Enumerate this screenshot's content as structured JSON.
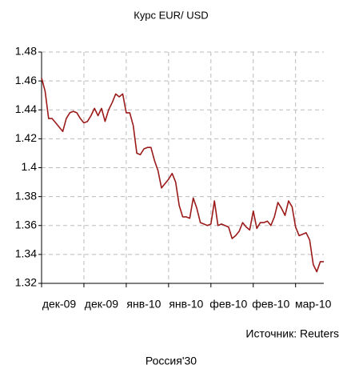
{
  "chart_data": {
    "type": "line",
    "title": "Курс EUR/ USD",
    "source": "Источник: Reuters",
    "footer": "Россия'30",
    "categories": [
      "дек-09",
      null,
      null,
      null,
      null,
      null,
      null,
      null,
      null,
      null,
      null,
      null,
      "дек-09",
      null,
      null,
      null,
      null,
      null,
      null,
      null,
      null,
      null,
      null,
      null,
      "янв-10",
      null,
      null,
      null,
      null,
      null,
      null,
      null,
      null,
      null,
      null,
      null,
      "янв-10",
      null,
      null,
      null,
      null,
      null,
      null,
      null,
      null,
      null,
      null,
      null,
      "фев-10",
      null,
      null,
      null,
      null,
      null,
      null,
      null,
      null,
      null,
      null,
      null,
      "фев-10",
      null,
      null,
      null,
      null,
      null,
      null,
      null,
      null,
      null,
      null,
      null,
      "мар-10",
      null,
      null,
      null,
      null,
      null,
      null,
      null,
      null
    ],
    "series": [
      {
        "name": "EUR/USD",
        "color": "#9b1a1a",
        "values": [
          1.462,
          1.453,
          1.434,
          1.434,
          1.431,
          1.428,
          1.425,
          1.434,
          1.438,
          1.439,
          1.438,
          1.434,
          1.431,
          1.432,
          1.436,
          1.441,
          1.436,
          1.441,
          1.432,
          1.44,
          1.445,
          1.451,
          1.449,
          1.451,
          1.438,
          1.438,
          1.429,
          1.41,
          1.409,
          1.413,
          1.414,
          1.414,
          1.405,
          1.398,
          1.386,
          1.389,
          1.392,
          1.396,
          1.39,
          1.374,
          1.366,
          1.366,
          1.365,
          1.379,
          1.372,
          1.362,
          1.361,
          1.36,
          1.361,
          1.377,
          1.36,
          1.361,
          1.36,
          1.359,
          1.351,
          1.353,
          1.356,
          1.362,
          1.359,
          1.357,
          1.37,
          1.358,
          1.362,
          1.362,
          1.363,
          1.36,
          1.366,
          1.376,
          1.372,
          1.367,
          1.377,
          1.373,
          1.359,
          1.353,
          1.354,
          1.355,
          1.35,
          1.333,
          1.328,
          1.335,
          1.335
        ]
      }
    ],
    "ylim": [
      1.32,
      1.48
    ],
    "yticks": [
      1.32,
      1.34,
      1.36,
      1.38,
      1.4,
      1.42,
      1.44,
      1.46,
      1.48
    ],
    "grid": true
  }
}
